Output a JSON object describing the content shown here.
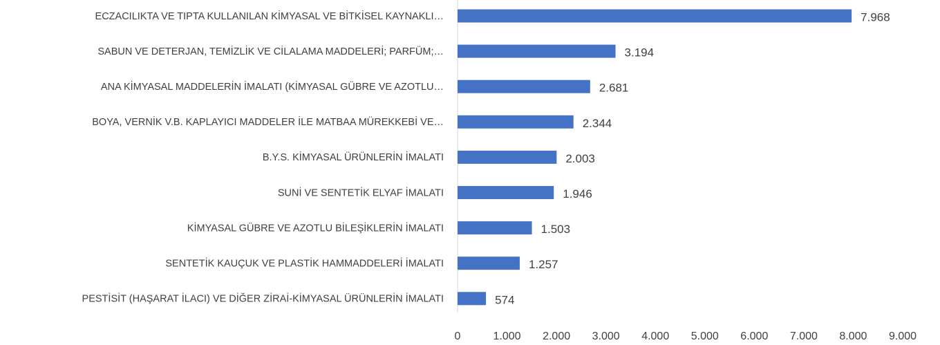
{
  "chart_data": {
    "type": "bar",
    "orientation": "horizontal",
    "categories": [
      "ECZACILIKTA VE TIPTA KULLANILAN KİMYASAL VE BİTKİSEL KAYNAKLI…",
      "SABUN VE DETERJAN, TEMİZLİK VE CİLALAMA MADDELERİ; PARFÜM;…",
      "ANA KİMYASAL MADDELERİN İMALATI (KİMYASAL GÜBRE VE AZOTLU…",
      "BOYA, VERNİK V.B. KAPLAYICI MADDELER İLE MATBAA MÜREKKEBİ VE…",
      "B.Y.S. KİMYASAL ÜRÜNLERİN İMALATI",
      "SUNİ VE SENTETİK ELYAF İMALATI",
      "KİMYASAL GÜBRE VE AZOTLU BİLEŞİKLERİN İMALATI",
      "SENTETİK KAUÇUK VE PLASTİK HAMMADDELERİ İMALATI",
      "PESTİSİT (HAŞARAT İLACI) VE DİĞER ZİRAİ-KİMYASAL ÜRÜNLERİN İMALATI"
    ],
    "values": [
      7968,
      3194,
      2681,
      2344,
      2003,
      1946,
      1503,
      1257,
      574
    ],
    "value_labels": [
      "7.968",
      "3.194",
      "2.681",
      "2.344",
      "2.003",
      "1.946",
      "1.503",
      "1.257",
      "574"
    ],
    "color": "#4472c4",
    "xlim": [
      0,
      9000
    ],
    "xticks": [
      0,
      {
        "value": 1000,
        "label": "1.000"
      },
      {
        "value": 2000,
        "label": "2.000"
      },
      {
        "value": 3000,
        "label": "3.000"
      },
      {
        "value": 4000,
        "label": "4.000"
      },
      {
        "value": 5000,
        "label": "5.000"
      },
      {
        "value": 6000,
        "label": "6.000"
      },
      {
        "value": 7000,
        "label": "7.000"
      },
      {
        "value": 8000,
        "label": "8.000"
      },
      {
        "value": 9000,
        "label": "9.000"
      }
    ]
  }
}
